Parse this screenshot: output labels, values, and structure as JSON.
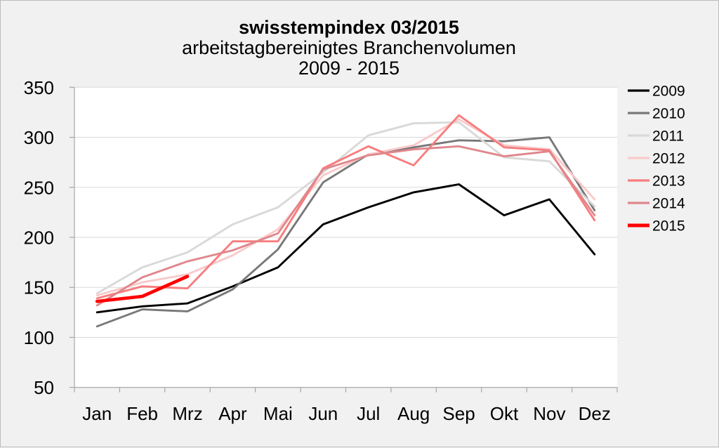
{
  "title": "swisstempindex 03/2015",
  "subtitle": "arbeitstagbereinigtes Branchenvolumen",
  "subtitle2": "2009 - 2015",
  "chart_data": {
    "type": "line",
    "categories": [
      "Jan",
      "Feb",
      "Mrz",
      "Apr",
      "Mai",
      "Jun",
      "Jul",
      "Aug",
      "Sep",
      "Okt",
      "Nov",
      "Dez"
    ],
    "ylim": [
      50,
      350
    ],
    "ytick_step": 50,
    "grid": true,
    "legend_position": "right",
    "series": [
      {
        "name": "2009",
        "color": "#000000",
        "width": 2.9,
        "values": [
          125,
          131,
          134,
          151,
          170,
          213,
          230,
          245,
          253,
          222,
          238,
          183
        ]
      },
      {
        "name": "2010",
        "color": "#787878",
        "width": 2.9,
        "values": [
          111,
          128,
          126,
          148,
          188,
          255,
          283,
          290,
          297,
          296,
          300,
          227
        ]
      },
      {
        "name": "2011",
        "color": "#d9d9d9",
        "width": 2.9,
        "values": [
          144,
          170,
          185,
          213,
          230,
          265,
          302,
          314,
          315,
          280,
          276,
          231
        ]
      },
      {
        "name": "2012",
        "color": "#f9caca",
        "width": 2.9,
        "values": [
          142,
          155,
          163,
          182,
          208,
          262,
          283,
          292,
          318,
          292,
          288,
          238
        ]
      },
      {
        "name": "2013",
        "color": "#f87d7e",
        "width": 2.9,
        "values": [
          139,
          151,
          149,
          196,
          196,
          269,
          291,
          272,
          322,
          290,
          287,
          217
        ]
      },
      {
        "name": "2014",
        "color": "#e0878c",
        "width": 2.9,
        "values": [
          132,
          160,
          176,
          187,
          204,
          268,
          282,
          288,
          291,
          281,
          286,
          222
        ]
      },
      {
        "name": "2015",
        "color": "#ff0000",
        "width": 4.7,
        "values": [
          136,
          141,
          161
        ]
      }
    ]
  }
}
